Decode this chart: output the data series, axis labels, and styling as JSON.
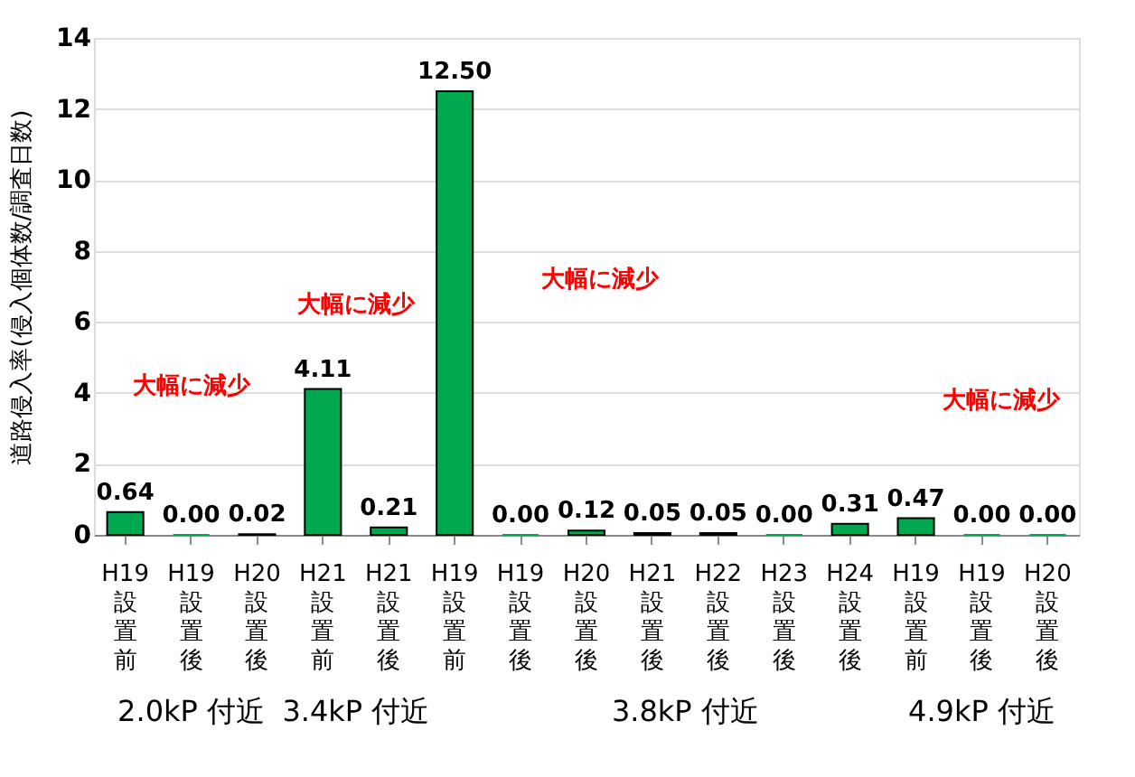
{
  "chart_data": {
    "type": "bar",
    "ylabel": "道路侵入率(侵入個体数/調査日数)",
    "categories": [
      "H19 設置前",
      "H19 設置後",
      "H20 設置後",
      "H21 設置前",
      "H21 設置後",
      "H19 設置前",
      "H19 設置後",
      "H20 設置後",
      "H21 設置後",
      "H22 設置後",
      "H23 設置後",
      "H24 設置後",
      "H19 設置前",
      "H19 設置後",
      "H20 設置後"
    ],
    "values": [
      0.64,
      0.0,
      0.02,
      4.11,
      0.21,
      12.5,
      0.0,
      0.12,
      0.05,
      0.05,
      0.0,
      0.31,
      0.47,
      0.0,
      0.0
    ],
    "color": "#00a84f",
    "value_labels": [
      "0.64",
      "0.00",
      "0.02",
      "4.11",
      "0.21",
      "12.50",
      "0.00",
      "0.12",
      "0.05",
      "0.05",
      "0.00",
      "0.31",
      "0.47",
      "0.00",
      "0.00"
    ],
    "ylim": [
      0,
      14
    ],
    "yticks": [
      0,
      2,
      4,
      6,
      8,
      10,
      12,
      14
    ],
    "grid": "y",
    "annotations": [
      "2.0kP 付近",
      "3.4kP 付近",
      "3.8kP 付近",
      "4.9kP 付近",
      "大幅に減少",
      "大幅に減少",
      "大幅に減少",
      "大幅に減少"
    ]
  }
}
